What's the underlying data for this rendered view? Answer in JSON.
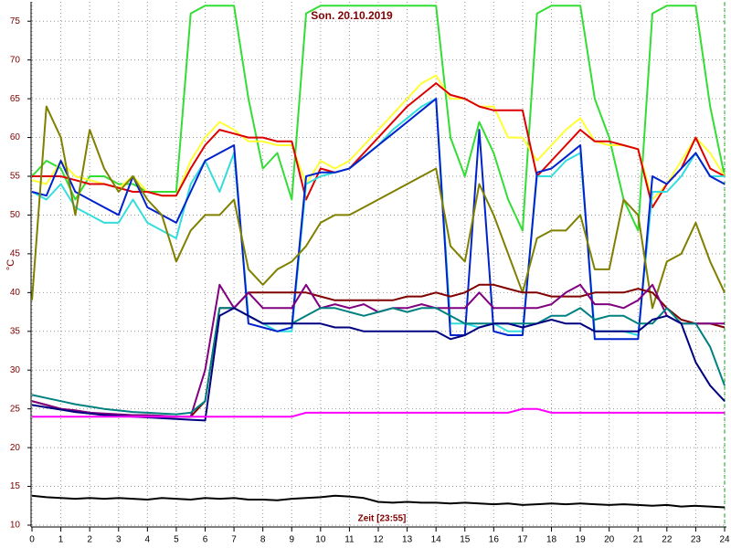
{
  "chart_data": {
    "type": "line",
    "title": "Son. 20.10.2019",
    "xlabel": "Zeit [23:55]",
    "ylabel": "°C",
    "xlim": [
      0,
      24
    ],
    "ylim": [
      10,
      77.5
    ],
    "xticks": [
      0,
      1,
      2,
      3,
      4,
      5,
      6,
      7,
      8,
      9,
      10,
      11,
      12,
      13,
      14,
      15,
      16,
      17,
      18,
      19,
      20,
      21,
      22,
      23,
      24
    ],
    "yticks": [
      10,
      15,
      20,
      25,
      30,
      35,
      40,
      45,
      50,
      55,
      60,
      65,
      70,
      75
    ],
    "grid": true,
    "x": [
      0,
      0.5,
      1,
      1.5,
      2,
      2.5,
      3,
      3.5,
      4,
      4.5,
      5,
      5.5,
      6,
      6.5,
      7,
      7.5,
      8,
      8.5,
      9,
      9.5,
      10,
      10.5,
      11,
      11.5,
      12,
      12.5,
      13,
      13.5,
      14,
      14.5,
      15,
      15.5,
      16,
      16.5,
      17,
      17.5,
      18,
      18.5,
      19,
      19.5,
      20,
      20.5,
      21,
      21.5,
      22,
      22.5,
      23,
      23.5,
      24
    ],
    "series": [
      {
        "color": "#33dd33",
        "values": [
          55,
          57,
          56,
          52,
          55,
          55,
          54,
          54,
          53,
          53,
          53,
          76,
          77,
          77,
          77,
          65,
          56,
          58,
          52,
          76,
          77,
          77,
          77,
          77,
          77,
          77,
          77,
          77,
          77,
          60,
          55,
          62,
          58,
          52,
          48,
          76,
          77,
          77,
          77,
          65,
          60,
          52,
          48,
          76,
          77,
          77,
          77,
          64,
          55
        ]
      },
      {
        "color": "#ffff33",
        "values": [
          54.5,
          54,
          57,
          55,
          54.5,
          54,
          53.5,
          55,
          53,
          52.5,
          52.5,
          57,
          60,
          62,
          61,
          59.5,
          59.5,
          59,
          59,
          54,
          57,
          56,
          57,
          59,
          61,
          63,
          65,
          67,
          68,
          65,
          65,
          64,
          64,
          60,
          60,
          57,
          59,
          61,
          62.5,
          59.5,
          59,
          59,
          58.5,
          52,
          54,
          57,
          60,
          58,
          55
        ]
      },
      {
        "color": "#dd0000",
        "values": [
          55,
          55,
          55,
          54.5,
          54,
          54,
          53.5,
          53,
          53,
          52.5,
          52.5,
          56,
          59,
          61,
          60.5,
          60,
          60,
          59.5,
          59.5,
          52,
          56,
          55.5,
          56,
          58,
          60,
          62,
          64,
          65.5,
          67,
          65.5,
          65,
          64,
          63.5,
          63.5,
          63.5,
          55,
          57,
          59,
          61,
          59.5,
          59.5,
          59,
          58.5,
          51,
          54,
          56,
          60,
          56,
          55
        ]
      },
      {
        "color": "#33dddd",
        "values": [
          53,
          52,
          54,
          51,
          50,
          49,
          49,
          52,
          49,
          48,
          47,
          54,
          57,
          53,
          58,
          37,
          36,
          35,
          35,
          54,
          55,
          55.5,
          56,
          57.5,
          59,
          61,
          62.5,
          64,
          65,
          36,
          36,
          35.5,
          36,
          35,
          35,
          55,
          55,
          57,
          58,
          35,
          35,
          35,
          34.5,
          53,
          53,
          55,
          58,
          55,
          55
        ]
      },
      {
        "color": "#0022cc",
        "values": [
          53,
          52.5,
          57,
          53,
          52,
          51,
          50,
          55,
          51,
          50,
          49,
          53,
          57,
          58,
          59,
          36,
          35.5,
          35,
          35.5,
          55,
          55.5,
          55.5,
          56,
          57.5,
          59,
          60.5,
          62,
          63.5,
          65,
          34.5,
          34.5,
          61,
          35,
          34.5,
          34.5,
          55.5,
          56,
          57.5,
          59,
          34,
          34,
          34,
          34,
          55,
          54,
          56,
          58,
          55,
          54
        ]
      },
      {
        "color": "#808000",
        "values": [
          39,
          64,
          60,
          50,
          61,
          56,
          53,
          55,
          52,
          50,
          44,
          48,
          50,
          50,
          52,
          43,
          41,
          43,
          44,
          46,
          49,
          50,
          50,
          51,
          52,
          53,
          54,
          55,
          56,
          46,
          44,
          54,
          50,
          45,
          40,
          47,
          48,
          48,
          50,
          43,
          43,
          52,
          50,
          38,
          44,
          45,
          49,
          44,
          40
        ]
      },
      {
        "color": "#800000",
        "values": [
          26,
          25.5,
          25,
          24.8,
          24.5,
          24.3,
          24.2,
          24.1,
          24,
          24,
          24,
          24,
          26,
          38,
          38,
          40,
          40,
          40,
          40,
          40,
          39.5,
          39,
          39,
          39,
          39,
          39,
          39.5,
          39.5,
          40,
          39.5,
          40,
          41,
          41,
          40.5,
          40,
          40,
          39.5,
          39.5,
          39.5,
          40,
          40,
          40,
          40.5,
          40,
          38,
          36.5,
          36,
          36,
          35.5
        ]
      },
      {
        "color": "#800080",
        "values": [
          26,
          25.5,
          25,
          24.8,
          24.5,
          24.4,
          24.3,
          24.2,
          24.2,
          24.1,
          24,
          24,
          30,
          41,
          38,
          40,
          38,
          38,
          38,
          41,
          38,
          38.5,
          38,
          38.5,
          37.5,
          38,
          38,
          38.5,
          38,
          38,
          38,
          40,
          38,
          38,
          38,
          38,
          38.5,
          40,
          41,
          38.5,
          38.5,
          38,
          39,
          41,
          37,
          36,
          36,
          36,
          36
        ]
      },
      {
        "color": "#008080",
        "values": [
          26.8,
          26.4,
          26,
          25.6,
          25.3,
          25,
          24.8,
          24.6,
          24.5,
          24.4,
          24.3,
          24.5,
          26,
          38,
          38,
          37,
          36,
          36,
          36,
          37,
          38,
          38,
          37.5,
          37,
          37.5,
          38,
          37.5,
          38,
          38,
          37,
          36,
          36,
          36,
          36,
          36,
          36,
          37,
          37,
          38,
          36.5,
          37,
          37,
          36,
          36,
          38,
          36,
          36,
          33,
          28
        ]
      },
      {
        "color": "#000080",
        "values": [
          25.5,
          25.2,
          24.9,
          24.6,
          24.4,
          24.2,
          24.1,
          24,
          23.9,
          23.8,
          23.7,
          23.6,
          23.5,
          37,
          38,
          37,
          36,
          36,
          36,
          36,
          36,
          35.5,
          35.5,
          35,
          35,
          35,
          35,
          35,
          35,
          34,
          34.5,
          35.5,
          36,
          36,
          35.5,
          36,
          36.5,
          36,
          36,
          35,
          35,
          35,
          35,
          36.5,
          37,
          36,
          31,
          28,
          26
        ]
      },
      {
        "color": "#ff00ff",
        "values": [
          24,
          24,
          24,
          24,
          24,
          24,
          24,
          24,
          24,
          24,
          24,
          24,
          24,
          24,
          24,
          24,
          24,
          24,
          24,
          24.5,
          24.5,
          24.5,
          24.5,
          24.5,
          24.5,
          24.5,
          24.5,
          24.5,
          24.5,
          24.5,
          24.5,
          24.5,
          24.5,
          24.5,
          25,
          25,
          24.5,
          24.5,
          24.5,
          24.5,
          24.5,
          24.5,
          24.5,
          24.5,
          24.5,
          24.5,
          24.5,
          24.5,
          24.5
        ]
      },
      {
        "color": "#000000",
        "values": [
          13.8,
          13.6,
          13.5,
          13.4,
          13.5,
          13.4,
          13.5,
          13.4,
          13.3,
          13.5,
          13.4,
          13.3,
          13.5,
          13.4,
          13.5,
          13.3,
          13.3,
          13.2,
          13.4,
          13.5,
          13.6,
          13.8,
          13.7,
          13.5,
          13.0,
          12.9,
          13.0,
          12.9,
          12.9,
          12.8,
          12.9,
          12.8,
          12.7,
          12.8,
          12.6,
          12.7,
          12.8,
          12.7,
          12.8,
          12.7,
          12.6,
          12.7,
          12.6,
          12.5,
          12.6,
          12.4,
          12.5,
          12.4,
          12.3
        ]
      }
    ]
  }
}
